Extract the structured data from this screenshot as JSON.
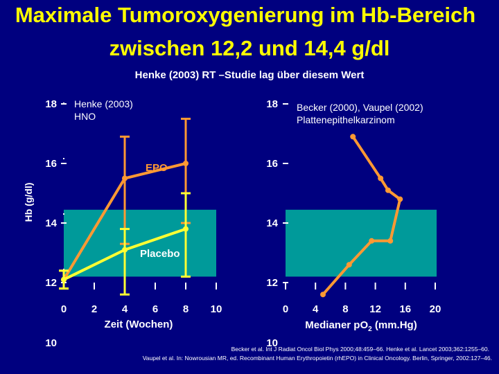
{
  "header": {
    "title_line1": "Maximale Tumoroxygenierung im Hb-Bereich",
    "title_line2": "zwischen 12,2 und 14,4 g/dl",
    "subtitle": "Henke (2003) RT –Studie lag über diesem Wert"
  },
  "references": {
    "line1": "Becker et al. Int J Radiat Oncol Biol Phys 2000;48:459–66. Henke et al. Lancet 2003;362:1255–60.",
    "line2": "Vaupel et al. In: Nowrousian MR, ed. Recombinant Human Erythropoietin (rhEPO) in Clinical Oncology. Berlin, Springer, 2002:127–46."
  },
  "colors": {
    "background": "#00007f",
    "title": "#ffff00",
    "band": "#009a9a",
    "epo_line": "#ff9933",
    "placebo_line": "#ffff33",
    "text": "#ffffff"
  },
  "chart_data": [
    {
      "type": "line",
      "annotations": {
        "panel_label_line1": "Henke (2003)",
        "panel_label_line2": "HNO"
      },
      "xlabel": "Zeit (Wochen)",
      "ylabel": "Hb (g/dl)",
      "xlim": [
        0,
        8
      ],
      "xticks": [
        0,
        2,
        4,
        6,
        8,
        10
      ],
      "yticks_labels": [
        "18",
        "16",
        "14",
        "12",
        "10"
      ],
      "ylim": [
        12,
        18
      ],
      "highlight_band": [
        12.2,
        14.4
      ],
      "series": [
        {
          "name": "EPO",
          "color": "#ff9933",
          "x": [
            0,
            4,
            8
          ],
          "y": [
            12.1,
            15.5,
            16.0
          ],
          "error_bars": [
            [
              11.8,
              12.4
            ],
            [
              13.3,
              16.9
            ],
            [
              14.0,
              17.5
            ]
          ]
        },
        {
          "name": "Placebo",
          "color": "#ffff33",
          "x": [
            0,
            4,
            8
          ],
          "y": [
            12.1,
            13.1,
            13.8
          ],
          "error_bars": [
            [
              11.8,
              12.4
            ],
            [
              11.6,
              13.8
            ],
            [
              12.2,
              15.0
            ]
          ]
        }
      ]
    },
    {
      "type": "line",
      "annotations": {
        "panel_label_line1": "Becker (2000), Vaupel (2002)",
        "panel_label_line2": "Plattenepithelkarzinom"
      },
      "xlabel": "Medianer pO₂ (mm.Hg)",
      "xlabel_main": "Medianer pO",
      "xlabel_sub": "2",
      "xlabel_tail": " (mm.Hg)",
      "xlim": [
        0,
        20
      ],
      "xticks": [
        0,
        4,
        8,
        12,
        16,
        20
      ],
      "yticks_labels": [
        "18",
        "16",
        "14",
        "12",
        "10"
      ],
      "ylim": [
        12,
        18
      ],
      "highlight_band": [
        12.2,
        14.4
      ],
      "series": [
        {
          "color": "#ff9933",
          "x": [
            5.0,
            8.5,
            11.5,
            14.0,
            15.3,
            13.7,
            12.7,
            9.0
          ],
          "y": [
            11.6,
            12.6,
            13.4,
            13.4,
            14.8,
            15.1,
            15.5,
            16.9
          ]
        }
      ]
    }
  ]
}
